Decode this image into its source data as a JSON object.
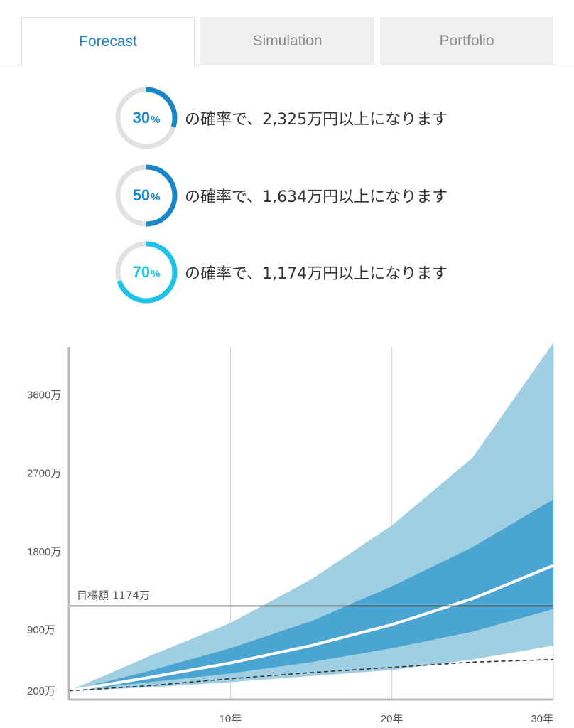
{
  "tabs": [
    {
      "label": "Forecast",
      "active": true
    },
    {
      "label": "Simulation",
      "active": false
    },
    {
      "label": "Portfolio",
      "active": false
    }
  ],
  "probabilities": [
    {
      "percent_value": "30",
      "percent_sign": "%",
      "fraction": 0.3,
      "color": "#1a86c8",
      "text": "の確率で、2,325万円以上になります"
    },
    {
      "percent_value": "50",
      "percent_sign": "%",
      "fraction": 0.5,
      "color": "#1a86c8",
      "text": "の確率で、1,634万円以上になります"
    },
    {
      "percent_value": "70",
      "percent_sign": "%",
      "fraction": 0.7,
      "color": "#1fc3ea",
      "text": "の確率で、1,174万円以上になります"
    }
  ],
  "chart_data": {
    "type": "area",
    "x_unit": "年",
    "x": [
      0,
      5,
      10,
      15,
      20,
      25,
      30
    ],
    "xlim": [
      0,
      30
    ],
    "ylim": [
      100,
      4150
    ],
    "y_unit": "万",
    "y_ticks": [
      {
        "value": 200,
        "label": "200万"
      },
      {
        "value": 900,
        "label": "900万"
      },
      {
        "value": 1800,
        "label": "1800万"
      },
      {
        "value": 2700,
        "label": "2700万"
      },
      {
        "value": 3600,
        "label": "3600万"
      }
    ],
    "x_ticks": [
      {
        "value": 10,
        "label": "10年"
      },
      {
        "value": 20,
        "label": "20年"
      },
      {
        "value": 30,
        "label": "30年"
      }
    ],
    "outer_band": {
      "lower": [
        200,
        240,
        300,
        370,
        440,
        560,
        720
      ],
      "upper": [
        200,
        600,
        980,
        1480,
        2100,
        2880,
        4200
      ],
      "color": "#a0cfe4"
    },
    "inner_band": {
      "lower": [
        200,
        300,
        400,
        530,
        690,
        880,
        1140
      ],
      "upper": [
        200,
        430,
        690,
        1000,
        1400,
        1850,
        2400
      ],
      "color": "#4aa5d3"
    },
    "median": {
      "values": [
        200,
        355,
        520,
        720,
        960,
        1260,
        1640
      ],
      "color": "#ffffff"
    },
    "principal": {
      "values": [
        200,
        260,
        340,
        410,
        470,
        530,
        560
      ],
      "color": "#333333"
    },
    "target": {
      "value": 1174,
      "label": "目標額 1174万",
      "color": "#444444"
    },
    "grid": true
  }
}
